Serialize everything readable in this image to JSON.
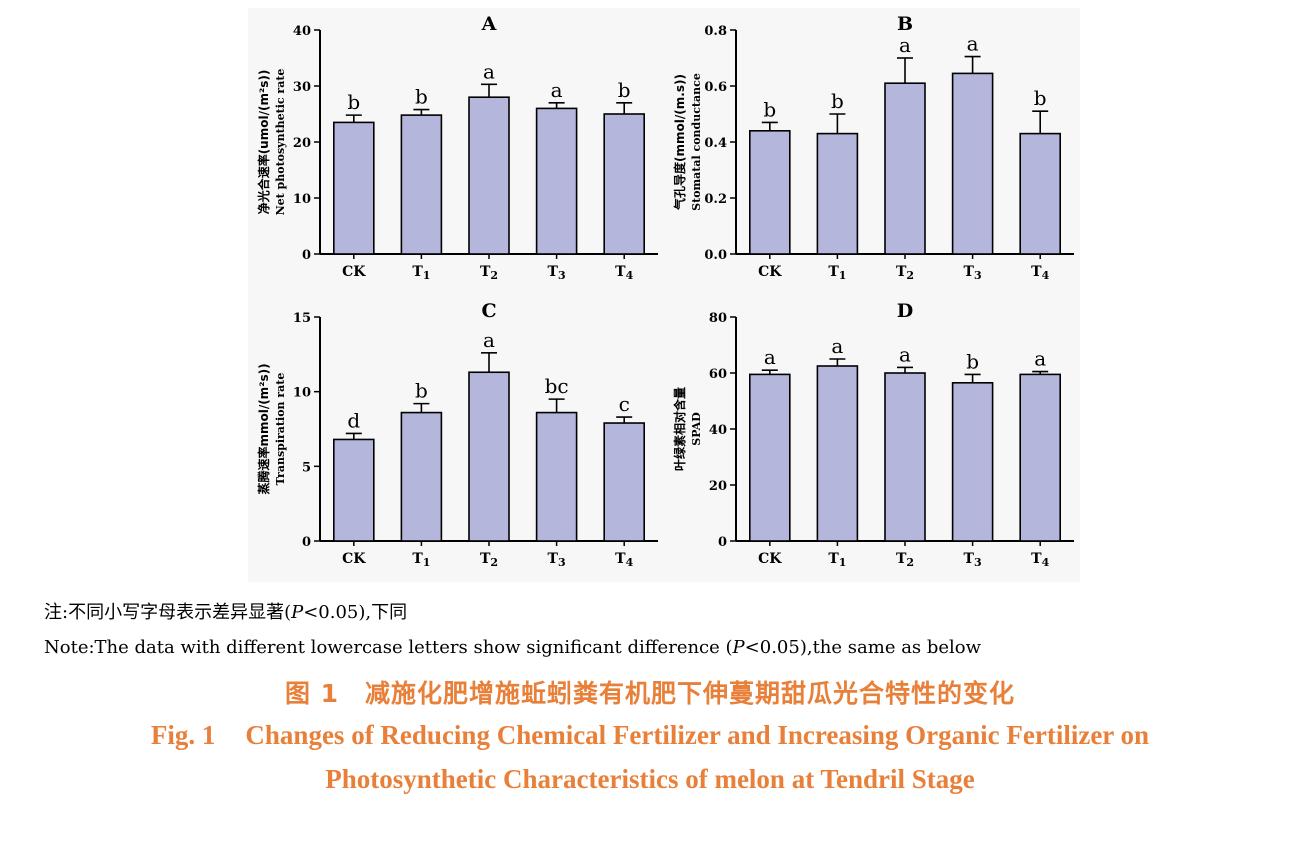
{
  "chart_data": [
    {
      "type": "bar",
      "panel_label": "A",
      "ylabel_cn": "净光合速率(umol/(m²s))",
      "ylabel_en": "Net photosynthetic rate",
      "categories": [
        "CK",
        "T1",
        "T2",
        "T3",
        "T4"
      ],
      "values": [
        23.5,
        24.8,
        28.0,
        26.0,
        25.0
      ],
      "errors": [
        1.3,
        1.0,
        2.3,
        1.0,
        2.0
      ],
      "significance": [
        "b",
        "b",
        "a",
        "a",
        "b"
      ],
      "ylim": [
        0,
        40
      ],
      "yticks": [
        "0",
        "10",
        "20",
        "30",
        "40"
      ],
      "bar_color": "#b4b6dc"
    },
    {
      "type": "bar",
      "panel_label": "B",
      "ylabel_cn": "气孔导度(mmol/(m.s))",
      "ylabel_en": "Stomatal conductance",
      "categories": [
        "CK",
        "T1",
        "T2",
        "T3",
        "T4"
      ],
      "values": [
        0.44,
        0.43,
        0.61,
        0.645,
        0.43
      ],
      "errors": [
        0.03,
        0.07,
        0.09,
        0.06,
        0.08
      ],
      "significance": [
        "b",
        "b",
        "a",
        "a",
        "b"
      ],
      "ylim": [
        0,
        0.8
      ],
      "yticks": [
        "0.0",
        "0.2",
        "0.4",
        "0.6",
        "0.8"
      ],
      "bar_color": "#b4b6dc"
    },
    {
      "type": "bar",
      "panel_label": "C",
      "ylabel_cn": "蒸腾速率mmol/(m²s))",
      "ylabel_en": "Transpiration rate",
      "categories": [
        "CK",
        "T1",
        "T2",
        "T3",
        "T4"
      ],
      "values": [
        6.8,
        8.6,
        11.3,
        8.6,
        7.9
      ],
      "errors": [
        0.4,
        0.6,
        1.3,
        0.9,
        0.4
      ],
      "significance": [
        "d",
        "b",
        "a",
        "bc",
        "c"
      ],
      "ylim": [
        0,
        15
      ],
      "yticks": [
        "0",
        "5",
        "10",
        "15"
      ],
      "bar_color": "#b4b6dc"
    },
    {
      "type": "bar",
      "panel_label": "D",
      "ylabel_cn": "叶绿素相对含量",
      "ylabel_en": "SPAD",
      "categories": [
        "CK",
        "T1",
        "T2",
        "T3",
        "T4"
      ],
      "values": [
        59.5,
        62.5,
        60.0,
        56.5,
        59.5
      ],
      "errors": [
        1.5,
        2.5,
        2.0,
        3.0,
        1.0
      ],
      "significance": [
        "a",
        "a",
        "a",
        "b",
        "a"
      ],
      "ylim": [
        0,
        80
      ],
      "yticks": [
        "0",
        "20",
        "40",
        "60",
        "80"
      ],
      "bar_color": "#b4b6dc"
    }
  ],
  "note_cn": {
    "prefix": "注:不同小写字母表示差异显著(",
    "p": "P",
    "suffix": "<0.05),下同"
  },
  "note_en": {
    "prefix": "Note:The data with different lowercase letters show significant difference (",
    "p": "P",
    "suffix": "<0.05),the same as below"
  },
  "caption_cn": {
    "fig_no": "图 1",
    "text": "减施化肥增施蚯蚓粪有机肥下伸蔓期甜瓜光合特性的变化"
  },
  "caption_en": {
    "fig_no": "Fig. 1",
    "line1": "Changes of Reducing Chemical Fertilizer and Increasing Organic Fertilizer on",
    "line2": "Photosynthetic Characteristics of melon at Tendril Stage"
  }
}
